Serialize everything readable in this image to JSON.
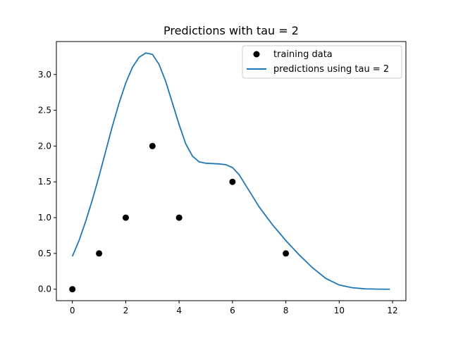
{
  "chart_data": {
    "type": "scatter+line",
    "title": "Predictions with tau = 2",
    "xlabel": "",
    "ylabel": "",
    "xlim": [
      -0.6,
      12.5
    ],
    "ylim": [
      -0.16,
      3.46
    ],
    "x_ticks": [
      0,
      2,
      4,
      6,
      8,
      10,
      12
    ],
    "x_tick_labels": [
      "0",
      "2",
      "4",
      "6",
      "8",
      "10",
      "12"
    ],
    "y_ticks": [
      0.0,
      0.5,
      1.0,
      1.5,
      2.0,
      2.5,
      3.0
    ],
    "y_tick_labels": [
      "0.0",
      "0.5",
      "1.0",
      "1.5",
      "2.0",
      "2.5",
      "3.0"
    ],
    "grid": false,
    "legend": {
      "position": "top-right",
      "entries": [
        "training data",
        "predictions using tau = 2"
      ]
    },
    "scatter": {
      "name": "training data",
      "color": "#000000",
      "points": [
        {
          "x": 0,
          "y": 0.0
        },
        {
          "x": 1,
          "y": 0.5
        },
        {
          "x": 2,
          "y": 1.0
        },
        {
          "x": 3,
          "y": 2.0
        },
        {
          "x": 4,
          "y": 1.0
        },
        {
          "x": 6,
          "y": 1.5
        },
        {
          "x": 8,
          "y": 0.5
        }
      ]
    },
    "line": {
      "name": "predictions using tau = 2",
      "color": "#1f77b4",
      "x": [
        0,
        0.25,
        0.5,
        0.75,
        1,
        1.25,
        1.5,
        1.75,
        2,
        2.25,
        2.5,
        2.75,
        3,
        3.25,
        3.5,
        3.75,
        4,
        4.25,
        4.5,
        4.75,
        5,
        5.25,
        5.5,
        5.75,
        6,
        6.25,
        6.5,
        6.75,
        7,
        7.5,
        8,
        8.5,
        9,
        9.5,
        10,
        10.5,
        11,
        11.5,
        11.9
      ],
      "y": [
        0.46,
        0.68,
        0.95,
        1.25,
        1.58,
        1.93,
        2.28,
        2.6,
        2.88,
        3.1,
        3.24,
        3.3,
        3.28,
        3.14,
        2.9,
        2.6,
        2.3,
        2.03,
        1.86,
        1.78,
        1.76,
        1.755,
        1.75,
        1.74,
        1.7,
        1.6,
        1.45,
        1.3,
        1.15,
        0.9,
        0.68,
        0.48,
        0.3,
        0.15,
        0.06,
        0.02,
        0.005,
        0.001,
        0.0
      ]
    }
  }
}
